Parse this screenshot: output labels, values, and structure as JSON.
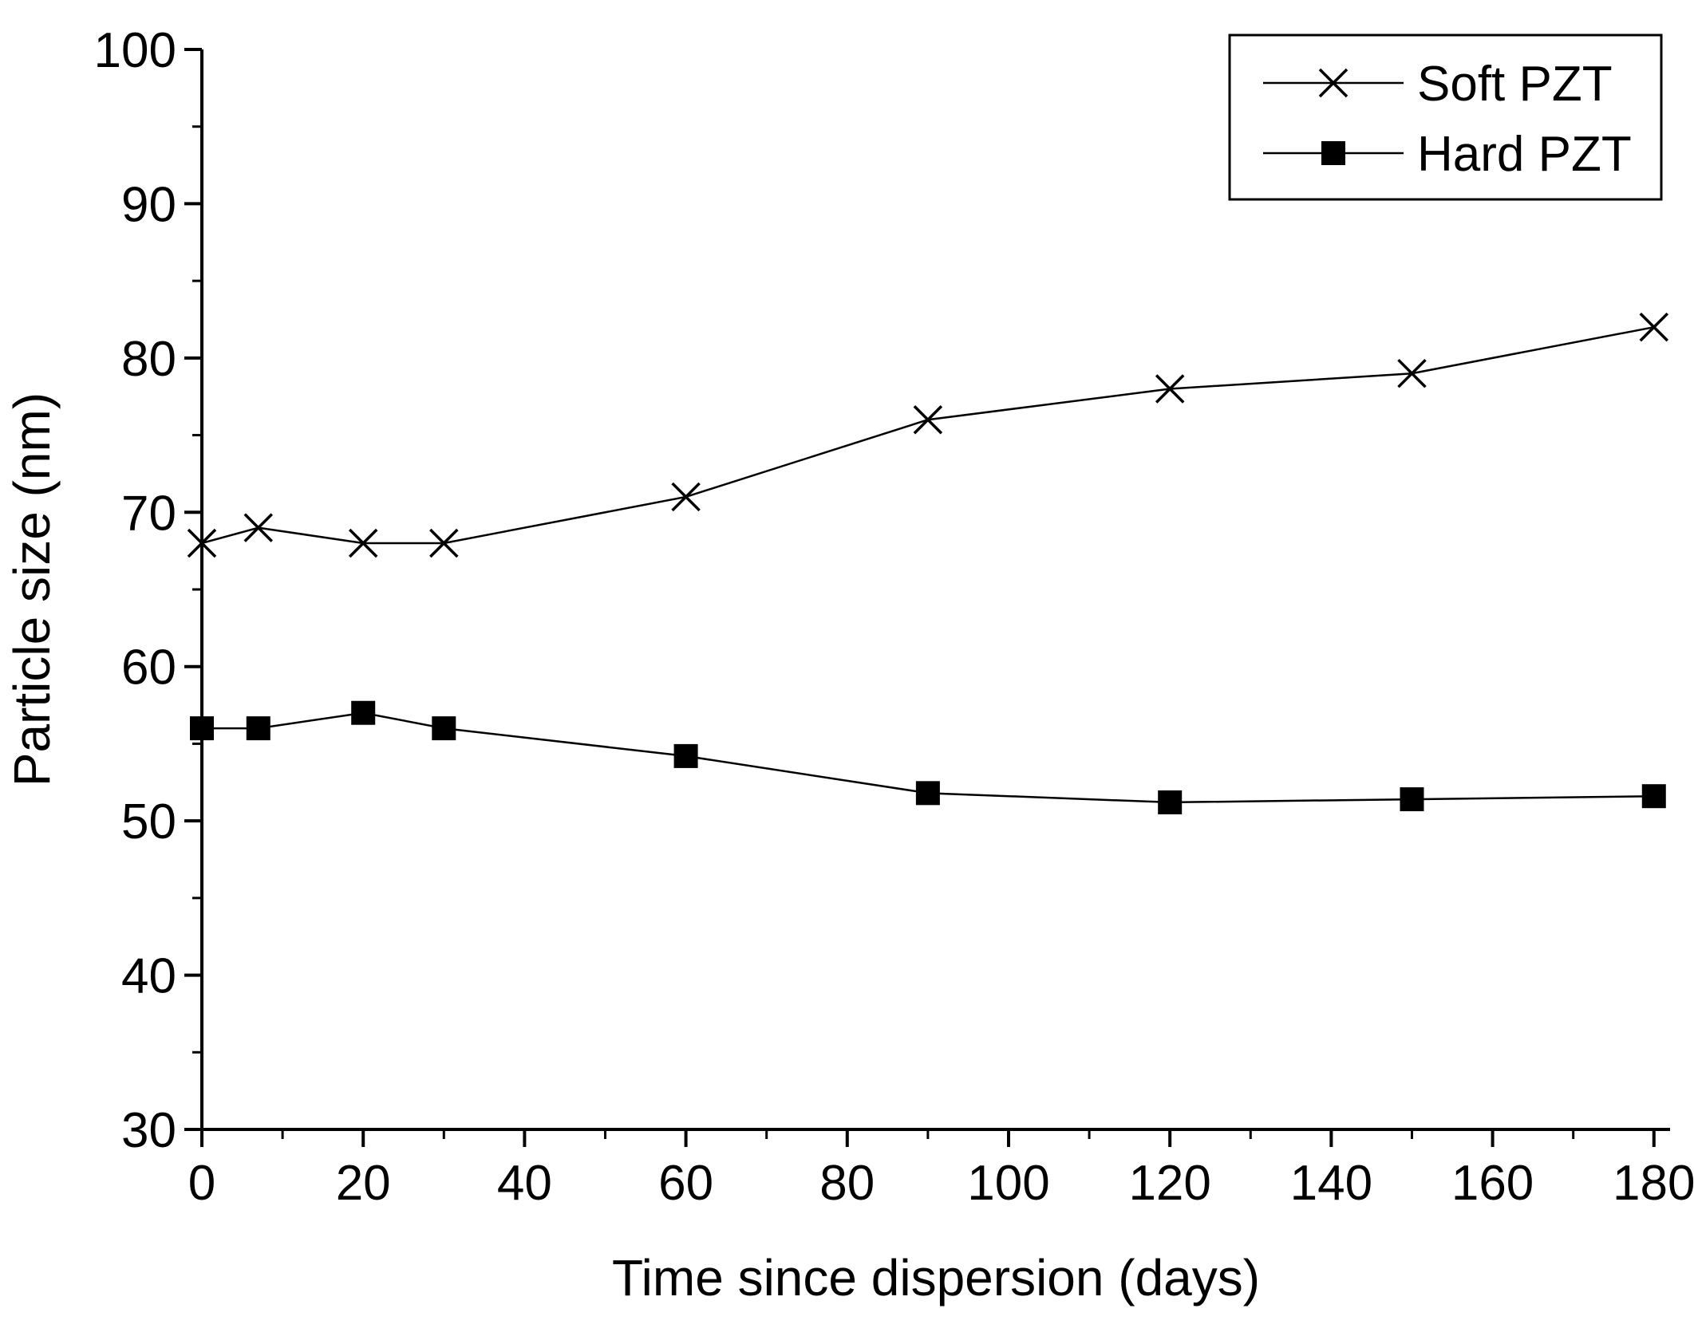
{
  "chart_data": {
    "type": "line",
    "title": "",
    "xlabel": "Time since dispersion (days)",
    "ylabel": "Particle size (nm)",
    "xlim": [
      0,
      182
    ],
    "ylim": [
      30,
      100
    ],
    "xticks": [
      0,
      20,
      40,
      60,
      80,
      100,
      120,
      140,
      160,
      180
    ],
    "xticks_minor": [
      10,
      30,
      50,
      70,
      90,
      110,
      130,
      150,
      170
    ],
    "yticks": [
      30,
      40,
      50,
      60,
      70,
      80,
      90,
      100
    ],
    "yticks_minor": [
      35,
      45,
      55,
      65,
      75,
      85,
      95
    ],
    "grid": false,
    "legend": "top-right",
    "series": [
      {
        "name": "Soft PZT",
        "marker": "x",
        "color": "#000000",
        "x": [
          0,
          7,
          20,
          30,
          60,
          90,
          120,
          150,
          180
        ],
        "values": [
          68,
          69,
          68,
          68,
          71,
          76,
          78,
          79,
          82
        ]
      },
      {
        "name": "Hard PZT",
        "marker": "square",
        "color": "#000000",
        "x": [
          0,
          7,
          20,
          30,
          60,
          90,
          120,
          150,
          180
        ],
        "values": [
          56,
          56,
          57,
          56,
          54.2,
          51.8,
          51.2,
          51.4,
          51.6
        ]
      }
    ]
  }
}
